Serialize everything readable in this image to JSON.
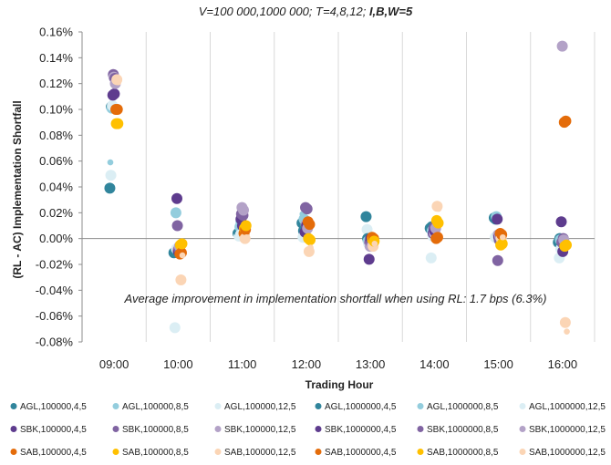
{
  "chart_data": {
    "type": "scatter",
    "title_prefix": "V=100 000,1000 000; T=4,8,12; ",
    "title_bold": "I,B,W=5",
    "xlabel": "Trading Hour",
    "ylabel": "(RL - AC) Implementation Shortfall",
    "annotation": "Average improvement in implementation shortfall when using RL: 1.7 bps (6.3%)",
    "categories": [
      "09:00",
      "10:00",
      "11:00",
      "12:00",
      "13:00",
      "14:00",
      "15:00",
      "16:00"
    ],
    "y_ticks": [
      "0.16%",
      "0.14%",
      "0.12%",
      "0.10%",
      "0.08%",
      "0.06%",
      "0.04%",
      "0.02%",
      "0.00%",
      "-0.02%",
      "-0.04%",
      "-0.06%",
      "-0.08%"
    ],
    "ylim": [
      -0.08,
      0.16
    ],
    "grid": "vertical",
    "legend_position": "bottom",
    "series": [
      {
        "name": "AGL,100000,4,5",
        "color": "#31859c",
        "size": "large",
        "values": [
          0.039,
          -0.011,
          0.004,
          0.012,
          0.017,
          0.008,
          0.016,
          -0.003
        ]
      },
      {
        "name": "AGL,100000,8,5",
        "color": "#93cddd",
        "size": "small",
        "values": [
          0.059,
          0.021,
          0.013,
          0.019,
          0.001,
          0.011,
          0.016,
          -0.002
        ]
      },
      {
        "name": "AGL,100000,12,5",
        "color": "#dbeef4",
        "size": "large",
        "values": [
          0.049,
          -0.069,
          0.002,
          0.001,
          0.007,
          -0.015,
          0.001,
          -0.015
        ]
      },
      {
        "name": "AGL,1000000,4,5",
        "color": "#31859c",
        "size": "large",
        "values": [
          0.102,
          -0.01,
          0.005,
          0.006,
          0.0,
          0.009,
          0.015,
          0.0
        ]
      },
      {
        "name": "AGL,1000000,8,5",
        "color": "#93cddd",
        "size": "large",
        "values": [
          0.101,
          0.02,
          0.009,
          0.015,
          -0.002,
          0.006,
          0.017,
          -0.001
        ]
      },
      {
        "name": "AGL,1000000,12,5",
        "color": "#dbeef4",
        "size": "large",
        "values": [
          0.103,
          -0.008,
          0.003,
          0.003,
          -0.004,
          0.002,
          0.002,
          -0.008
        ]
      },
      {
        "name": "SBK,100000,4,5",
        "color": "#5e3c8e",
        "size": "large",
        "values": [
          0.111,
          0.031,
          0.015,
          0.005,
          -0.016,
          0.004,
          0.015,
          0.013
        ]
      },
      {
        "name": "SBK,100000,8,5",
        "color": "#8064a2",
        "size": "large",
        "values": [
          0.127,
          0.01,
          0.019,
          0.024,
          -0.003,
          0.008,
          -0.017,
          -0.003
        ]
      },
      {
        "name": "SBK,100000,12,5",
        "color": "#b3a2c7",
        "size": "large",
        "values": [
          0.125,
          -0.009,
          0.024,
          0.011,
          -0.006,
          0.004,
          0.003,
          0.149
        ]
      },
      {
        "name": "SBK,1000000,4,5",
        "color": "#5e3c8e",
        "size": "large",
        "values": [
          0.112,
          -0.01,
          0.01,
          0.01,
          0.0,
          0.006,
          0.001,
          -0.01
        ]
      },
      {
        "name": "SBK,1000000,8,5",
        "color": "#8064a2",
        "size": "large",
        "values": [
          0.124,
          -0.008,
          0.018,
          0.023,
          -0.004,
          0.01,
          -0.001,
          0.0
        ]
      },
      {
        "name": "SBK,1000000,12,5",
        "color": "#b3a2c7",
        "size": "large",
        "values": [
          0.12,
          -0.006,
          0.022,
          0.008,
          -0.006,
          0.008,
          0.002,
          -0.001
        ]
      },
      {
        "name": "SAB,100000,4,5",
        "color": "#e46c0a",
        "size": "large",
        "values": [
          0.1,
          -0.012,
          0.004,
          0.013,
          0.001,
          0.0,
          0.004,
          0.09
        ]
      },
      {
        "name": "SAB,100000,8,5",
        "color": "#ffc000",
        "size": "large",
        "values": [
          0.089,
          -0.005,
          0.008,
          0.0,
          -0.001,
          0.014,
          -0.005,
          -0.006
        ]
      },
      {
        "name": "SAB,100000,12,5",
        "color": "#fbd5b5",
        "size": "large",
        "values": [
          0.123,
          -0.032,
          0.0,
          -0.01,
          -0.006,
          0.025,
          0.0,
          -0.065
        ]
      },
      {
        "name": "SAB,1000000,4,5",
        "color": "#e46c0a",
        "size": "large",
        "values": [
          0.1,
          -0.011,
          0.007,
          0.011,
          0.0,
          0.001,
          0.003,
          0.091
        ]
      },
      {
        "name": "SAB,1000000,8,5",
        "color": "#ffc000",
        "size": "large",
        "values": [
          0.089,
          -0.004,
          0.01,
          -0.001,
          -0.002,
          0.012,
          -0.004,
          -0.005
        ]
      },
      {
        "name": "SAB,1000000,12,5",
        "color": "#fbd5b5",
        "size": "small",
        "values": [
          0.121,
          -0.013,
          0.001,
          -0.007,
          -0.004,
          0.023,
          0.001,
          -0.072
        ]
      }
    ]
  }
}
